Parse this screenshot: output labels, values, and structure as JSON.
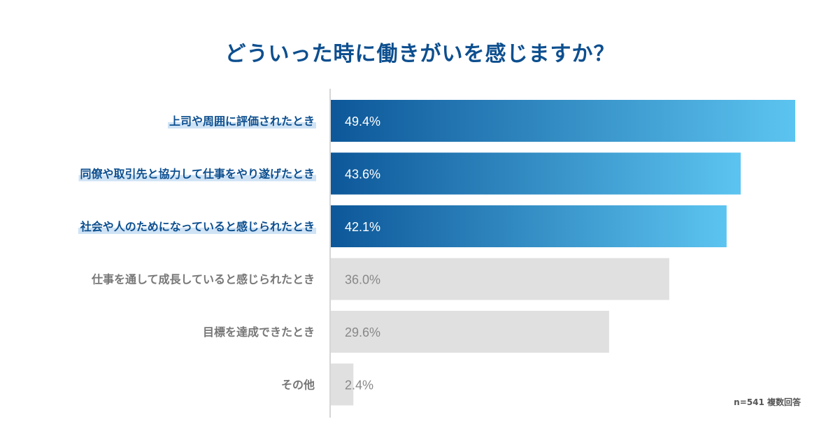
{
  "chart_data": {
    "type": "bar",
    "orientation": "horizontal",
    "title": "どういった時に働きがいを感じますか？",
    "categories": [
      "上司や周囲に評価されたとき",
      "同僚や取引先と協力して仕事をやり遂げたとき",
      "社会や人のためになっていると感じられたとき",
      "仕事を通して成長していると感じられたとき",
      "目標を達成できたとき",
      "その他"
    ],
    "values": [
      49.4,
      43.6,
      42.1,
      36.0,
      29.6,
      2.4
    ],
    "value_labels": [
      "49.4%",
      "43.6%",
      "42.1%",
      "36.0%",
      "29.6%",
      "2.4%"
    ],
    "highlighted": [
      true,
      true,
      true,
      false,
      false,
      false
    ],
    "xlim": [
      0,
      50
    ],
    "grid": false,
    "note": "n=541 複数回答"
  },
  "colors": {
    "title": "#0d4f8f",
    "highlight_start": "#0d5799",
    "highlight_end": "#5cc4f0",
    "highlight_label": "#0d4f8f",
    "label_underline": "#cfe3f5",
    "muted_bar": "#e0e0e0",
    "muted_label": "#777777",
    "muted_value": "#888888",
    "axis": "#c8c8c8"
  }
}
